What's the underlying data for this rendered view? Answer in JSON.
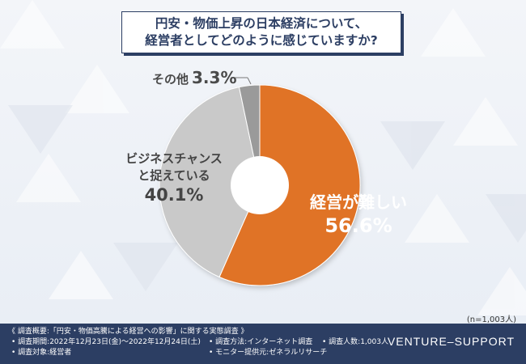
{
  "title": {
    "line1": "円安・物価上昇の日本経済について、",
    "line2": "経営者としてどのように感じていますか?"
  },
  "chart_data": {
    "type": "pie",
    "style": "donut",
    "slices": [
      {
        "label": "経営が難しい",
        "value": 56.6,
        "display": "56.6%",
        "color": "#e07325"
      },
      {
        "label": "ビジネスチャンスと捉えている",
        "value": 40.1,
        "display": "40.1%",
        "color": "#c9c9c9"
      },
      {
        "label": "その他",
        "value": 3.3,
        "display": "3.3%",
        "color": "#9a9a9a"
      }
    ],
    "labels": {
      "difficult": "経営が難しい",
      "chance_line1": "ビジネスチャンス",
      "chance_line2": "と捉えている",
      "other": "その他"
    }
  },
  "sample_size": "(n=1,003人)",
  "footer": {
    "overview": "《 調査概要:「円安・物価高騰による経営への影響」に関する実態調査 》",
    "period": "• 調査期間:2022年12月23日(金)〜2022年12月24日(土)",
    "method": "• 調査方法:インターネット調査",
    "count": "• 調査人数:1,003人",
    "target": "• 調査対象:経営者",
    "provider": "• モニター提供元:ゼネラルリサーチ",
    "brand": "VENTURE–SUPPORT"
  }
}
